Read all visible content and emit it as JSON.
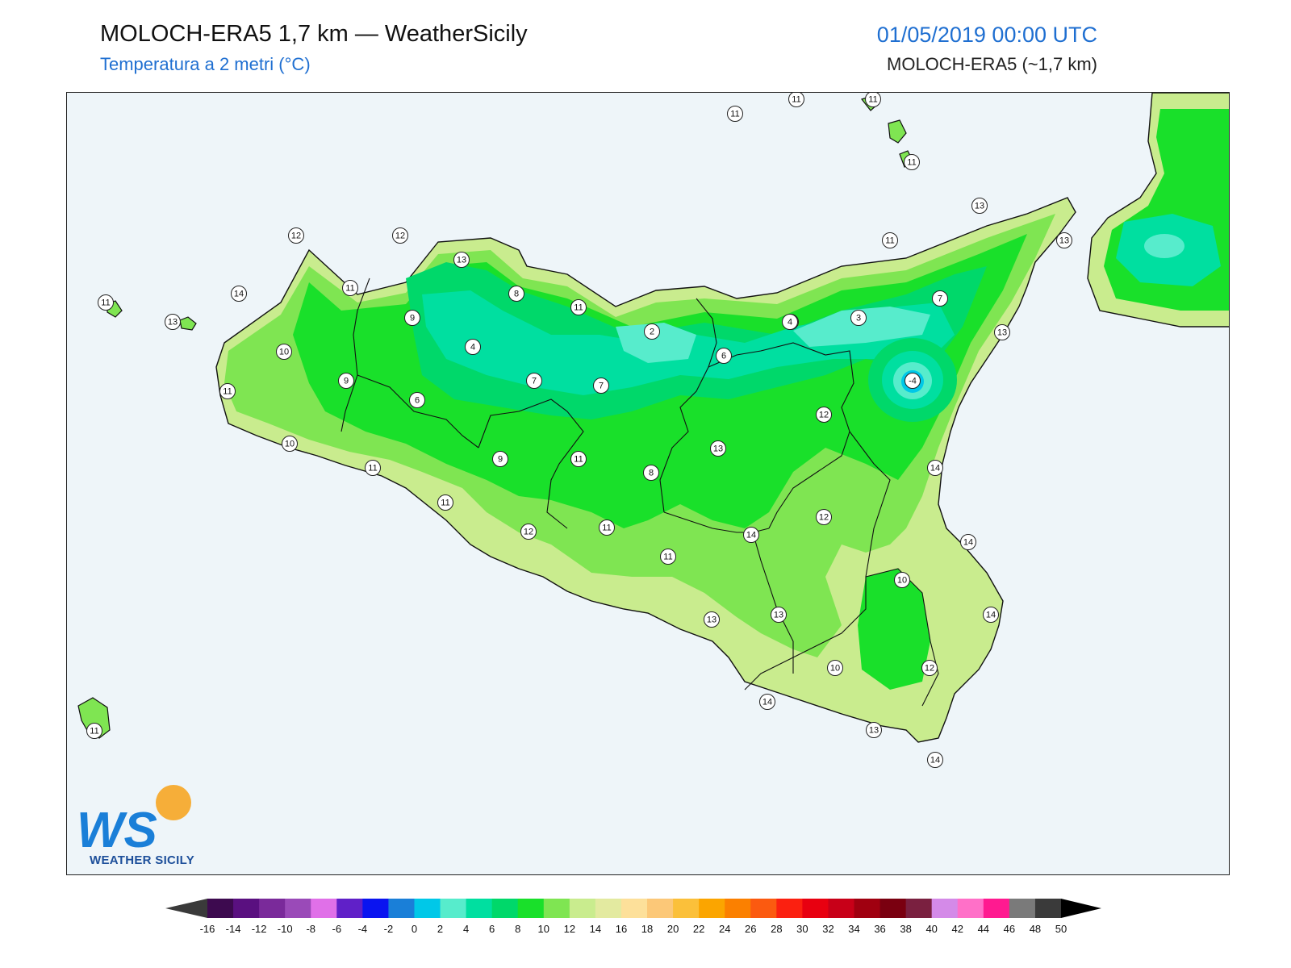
{
  "header": {
    "title": "MOLOCH-ERA5 1,7 km — WeatherSicily",
    "subtitle": "Temperatura a 2 metri (°C)",
    "datetime": "01/05/2019 00:00 UTC",
    "model": "MOLOCH-ERA5 (~1,7 km)"
  },
  "logo": {
    "mark": "WS",
    "text": "WEATHER SICILY"
  },
  "colors": {
    "sea": "#eef5f9",
    "t14": "#c9ec8e",
    "t12": "#7fe552",
    "t10": "#19e02a",
    "t8": "#00d86a",
    "t6": "#00dfa0",
    "t4": "#57eccc",
    "t2": "#00c8e8",
    "t0": "#1a7fd8",
    "tm4": "#1a1ae6"
  },
  "map": {
    "stations": [
      {
        "label": "11"
      },
      {
        "label": "11"
      },
      {
        "label": "11"
      },
      {
        "label": "11"
      },
      {
        "label": "13"
      },
      {
        "label": "11"
      },
      {
        "label": "13"
      },
      {
        "label": "12"
      },
      {
        "label": "12"
      },
      {
        "label": "13"
      },
      {
        "label": "11"
      },
      {
        "label": "14"
      },
      {
        "label": "11"
      },
      {
        "label": "13"
      },
      {
        "label": "8"
      },
      {
        "label": "9"
      },
      {
        "label": "11"
      },
      {
        "label": "7"
      },
      {
        "label": "4"
      },
      {
        "label": "2"
      },
      {
        "label": "3"
      },
      {
        "label": "4"
      },
      {
        "label": "10"
      },
      {
        "label": "4"
      },
      {
        "label": "6"
      },
      {
        "label": "13"
      },
      {
        "label": "-4"
      },
      {
        "label": "9"
      },
      {
        "label": "7"
      },
      {
        "label": "7"
      },
      {
        "label": "6"
      },
      {
        "label": "11"
      },
      {
        "label": "10"
      },
      {
        "label": "12"
      },
      {
        "label": "11"
      },
      {
        "label": "9"
      },
      {
        "label": "8"
      },
      {
        "label": "13"
      },
      {
        "label": "14"
      },
      {
        "label": "11"
      },
      {
        "label": "11"
      },
      {
        "label": "12"
      },
      {
        "label": "12"
      },
      {
        "label": "11"
      },
      {
        "label": "11"
      },
      {
        "label": "14"
      },
      {
        "label": "10"
      },
      {
        "label": "14"
      },
      {
        "label": "14"
      },
      {
        "label": "13"
      },
      {
        "label": "13"
      },
      {
        "label": "10"
      },
      {
        "label": "12"
      },
      {
        "label": "14"
      },
      {
        "label": "13"
      },
      {
        "label": "14"
      },
      {
        "label": "11"
      }
    ]
  },
  "colorbar": {
    "ticks": [
      "-16",
      "-14",
      "-12",
      "-10",
      "-8",
      "-6",
      "-4",
      "-2",
      "0",
      "2",
      "4",
      "6",
      "8",
      "10",
      "12",
      "14",
      "16",
      "18",
      "20",
      "22",
      "24",
      "26",
      "28",
      "30",
      "32",
      "34",
      "36",
      "38",
      "40",
      "42",
      "44",
      "46",
      "48",
      "50"
    ],
    "colors": [
      "#3d0a4f",
      "#5a1080",
      "#7a2a9a",
      "#9a4ab8",
      "#e070e8",
      "#6020c8",
      "#0a14f0",
      "#1a7fd8",
      "#00c8e8",
      "#57eccc",
      "#00dfa0",
      "#00d86a",
      "#19e02a",
      "#7fe552",
      "#c9ec8e",
      "#e3eaa0",
      "#fde09a",
      "#fcc878",
      "#fbc03a",
      "#fba500",
      "#fb8000",
      "#fb5a10",
      "#fb2010",
      "#e80010",
      "#c80018",
      "#a00010",
      "#7a0010",
      "#7a2040",
      "#d48ae8",
      "#ff70c8",
      "#ff1a90",
      "#7a7a7a",
      "#3a3a3a"
    ]
  }
}
